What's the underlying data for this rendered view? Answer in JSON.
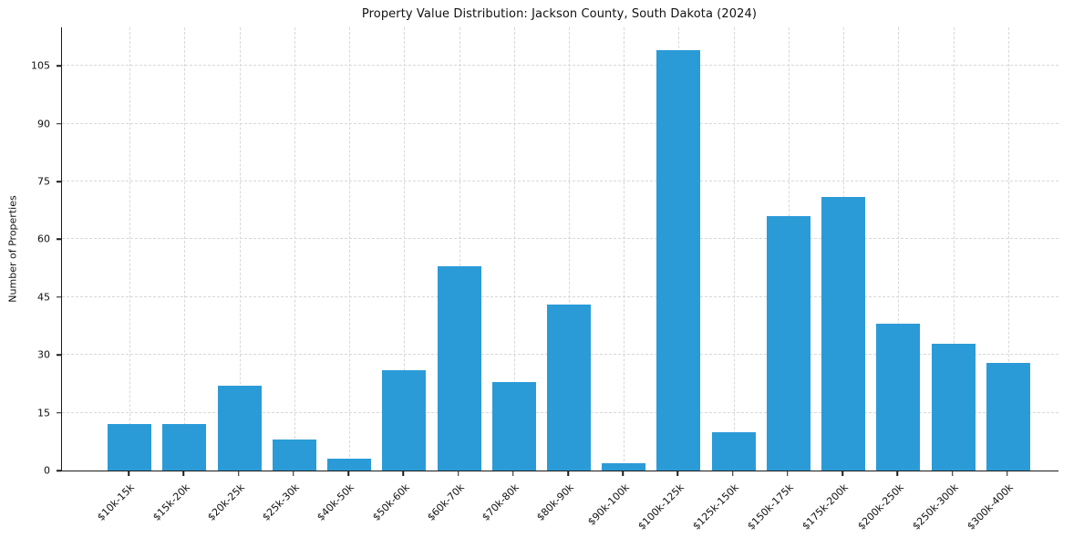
{
  "chart_data": {
    "type": "bar",
    "title": "Property Value Distribution: Jackson County, South Dakota (2024)",
    "xlabel": "",
    "ylabel": "Number of Properties",
    "categories": [
      "$10k-15k",
      "$15k-20k",
      "$20k-25k",
      "$25k-30k",
      "$40k-50k",
      "$50k-60k",
      "$60k-70k",
      "$70k-80k",
      "$80k-90k",
      "$90k-100k",
      "$100k-125k",
      "$125k-150k",
      "$150k-175k",
      "$175k-200k",
      "$200k-250k",
      "$250k-300k",
      "$300k-400k"
    ],
    "values": [
      12,
      12,
      22,
      8,
      3,
      26,
      53,
      23,
      43,
      2,
      109,
      10,
      66,
      71,
      38,
      33,
      28
    ],
    "yticks": [
      0,
      15,
      30,
      45,
      60,
      75,
      90,
      105
    ],
    "ylim": [
      0,
      115
    ],
    "bar_color": "#2b9bd7",
    "grid_color": "#d8d8d8",
    "axis_color": "#1a1a1a",
    "grid": "dashed",
    "legend": "none"
  }
}
